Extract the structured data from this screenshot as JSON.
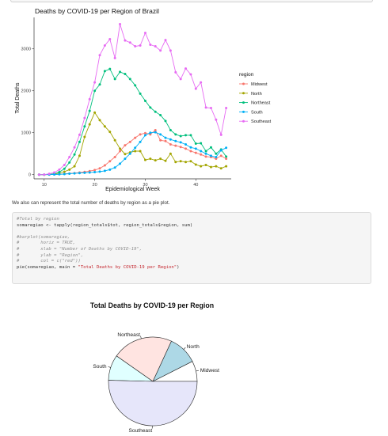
{
  "prose": "We also can represent the total number of deaths by region as a pie plot.",
  "code_lines": [
    {
      "kind": "comment",
      "text": "#Total by region"
    },
    {
      "kind": "code",
      "text": "somaregiao <- tapply(region_totals$tot, region_totals$region, sum)"
    },
    {
      "kind": "blank",
      "text": ""
    },
    {
      "kind": "comment",
      "text": "#barplot(somaregiao,"
    },
    {
      "kind": "comment",
      "text": "#        horiz = TRUE,"
    },
    {
      "kind": "comment",
      "text": "#        xlab = \"Number of Deaths by COVID-19\","
    },
    {
      "kind": "comment",
      "text": "#        ylab = \"Region\","
    },
    {
      "kind": "comment",
      "text": "#        col = c(\"red\"))"
    },
    {
      "kind": "code_str",
      "text": "pie(somaregiao, main = ",
      "str": "\"Total Deaths by COVID-19 per Region\"",
      "tail": ")"
    }
  ],
  "chart_data": [
    {
      "type": "line",
      "title": "Deaths by COVID-19 per Region of Brazil",
      "xlabel": "Epidemiological Week",
      "ylabel": "Total Deaths",
      "xlim": [
        8,
        47
      ],
      "ylim": [
        -100,
        3750
      ],
      "xticks": [
        10,
        20,
        30,
        40
      ],
      "yticks": [
        0,
        1000,
        2000,
        3000
      ],
      "grid": false,
      "legend_title": "region",
      "legend_position": "right",
      "series": [
        {
          "name": "Midwest",
          "color": "#F8766D",
          "x": [
            9,
            10,
            11,
            12,
            13,
            14,
            15,
            16,
            17,
            18,
            19,
            20,
            21,
            22,
            23,
            24,
            25,
            26,
            27,
            28,
            29,
            30,
            31,
            32,
            33,
            34,
            35,
            36,
            37,
            38,
            39,
            40,
            41,
            42,
            43,
            44,
            45,
            46
          ],
          "y": [
            0,
            0,
            2,
            5,
            10,
            18,
            28,
            38,
            50,
            65,
            85,
            110,
            150,
            220,
            320,
            420,
            560,
            700,
            780,
            880,
            960,
            990,
            960,
            1060,
            820,
            800,
            720,
            690,
            660,
            620,
            560,
            520,
            480,
            430,
            420,
            380,
            450,
            380
          ]
        },
        {
          "name": "North",
          "color": "#A3A500",
          "x": [
            9,
            10,
            11,
            12,
            13,
            14,
            15,
            16,
            17,
            18,
            19,
            20,
            21,
            22,
            23,
            24,
            25,
            26,
            27,
            28,
            29,
            30,
            31,
            32,
            33,
            34,
            35,
            36,
            37,
            38,
            39,
            40,
            41,
            42,
            43,
            44,
            45,
            46
          ],
          "y": [
            0,
            0,
            4,
            15,
            40,
            70,
            120,
            200,
            450,
            900,
            1200,
            1480,
            1300,
            1150,
            1020,
            820,
            620,
            490,
            530,
            560,
            560,
            350,
            380,
            340,
            380,
            330,
            500,
            300,
            320,
            300,
            320,
            240,
            200,
            230,
            180,
            200,
            150,
            200
          ]
        },
        {
          "name": "Northeast",
          "color": "#00BF7D",
          "x": [
            9,
            10,
            11,
            12,
            13,
            14,
            15,
            16,
            17,
            18,
            19,
            20,
            21,
            22,
            23,
            24,
            25,
            26,
            27,
            28,
            29,
            30,
            31,
            32,
            33,
            34,
            35,
            36,
            37,
            38,
            39,
            40,
            41,
            42,
            43,
            44,
            45,
            46
          ],
          "y": [
            0,
            0,
            5,
            20,
            60,
            140,
            290,
            480,
            780,
            1150,
            1520,
            2000,
            2150,
            2470,
            2520,
            2280,
            2450,
            2400,
            2280,
            2130,
            1930,
            1760,
            1600,
            1500,
            1420,
            1280,
            1060,
            960,
            920,
            940,
            940,
            740,
            750,
            560,
            650,
            500,
            600,
            430
          ]
        },
        {
          "name": "South",
          "color": "#00B0F6",
          "x": [
            9,
            10,
            11,
            12,
            13,
            14,
            15,
            16,
            17,
            18,
            19,
            20,
            21,
            22,
            23,
            24,
            25,
            26,
            27,
            28,
            29,
            30,
            31,
            32,
            33,
            34,
            35,
            36,
            37,
            38,
            39,
            40,
            41,
            42,
            43,
            44,
            45,
            46
          ],
          "y": [
            0,
            0,
            2,
            4,
            8,
            14,
            22,
            30,
            38,
            45,
            52,
            60,
            72,
            90,
            120,
            170,
            260,
            380,
            500,
            640,
            780,
            940,
            1000,
            1010,
            960,
            880,
            840,
            800,
            770,
            720,
            650,
            620,
            560,
            500,
            450,
            420,
            580,
            640
          ]
        },
        {
          "name": "Southeast",
          "color": "#E76BF3",
          "x": [
            9,
            10,
            11,
            12,
            13,
            14,
            15,
            16,
            17,
            18,
            19,
            20,
            21,
            22,
            23,
            24,
            25,
            26,
            27,
            28,
            29,
            30,
            31,
            32,
            33,
            34,
            35,
            36,
            37,
            38,
            39,
            40,
            41,
            42,
            43,
            44,
            45,
            46
          ],
          "y": [
            0,
            0,
            20,
            50,
            120,
            230,
            420,
            650,
            950,
            1350,
            1800,
            2200,
            2850,
            3080,
            3230,
            2780,
            3590,
            3200,
            3150,
            3060,
            3080,
            3380,
            3100,
            3060,
            2960,
            3210,
            2960,
            2440,
            2280,
            2530,
            2390,
            2050,
            2200,
            1600,
            1590,
            1310,
            950,
            1590
          ]
        }
      ]
    },
    {
      "type": "pie",
      "title": "Total Deaths by COVID-19 per Region",
      "categories": [
        "Midwest",
        "North",
        "Northeast",
        "South",
        "Southeast"
      ],
      "values": [
        28000,
        40000,
        83000,
        35000,
        189000
      ],
      "colors": [
        "#ffffff",
        "#add8e6",
        "#ffe4e1",
        "#e0ffff",
        "#e6e6fa"
      ],
      "start_angle_deg": 0,
      "direction": "counterclockwise"
    }
  ]
}
